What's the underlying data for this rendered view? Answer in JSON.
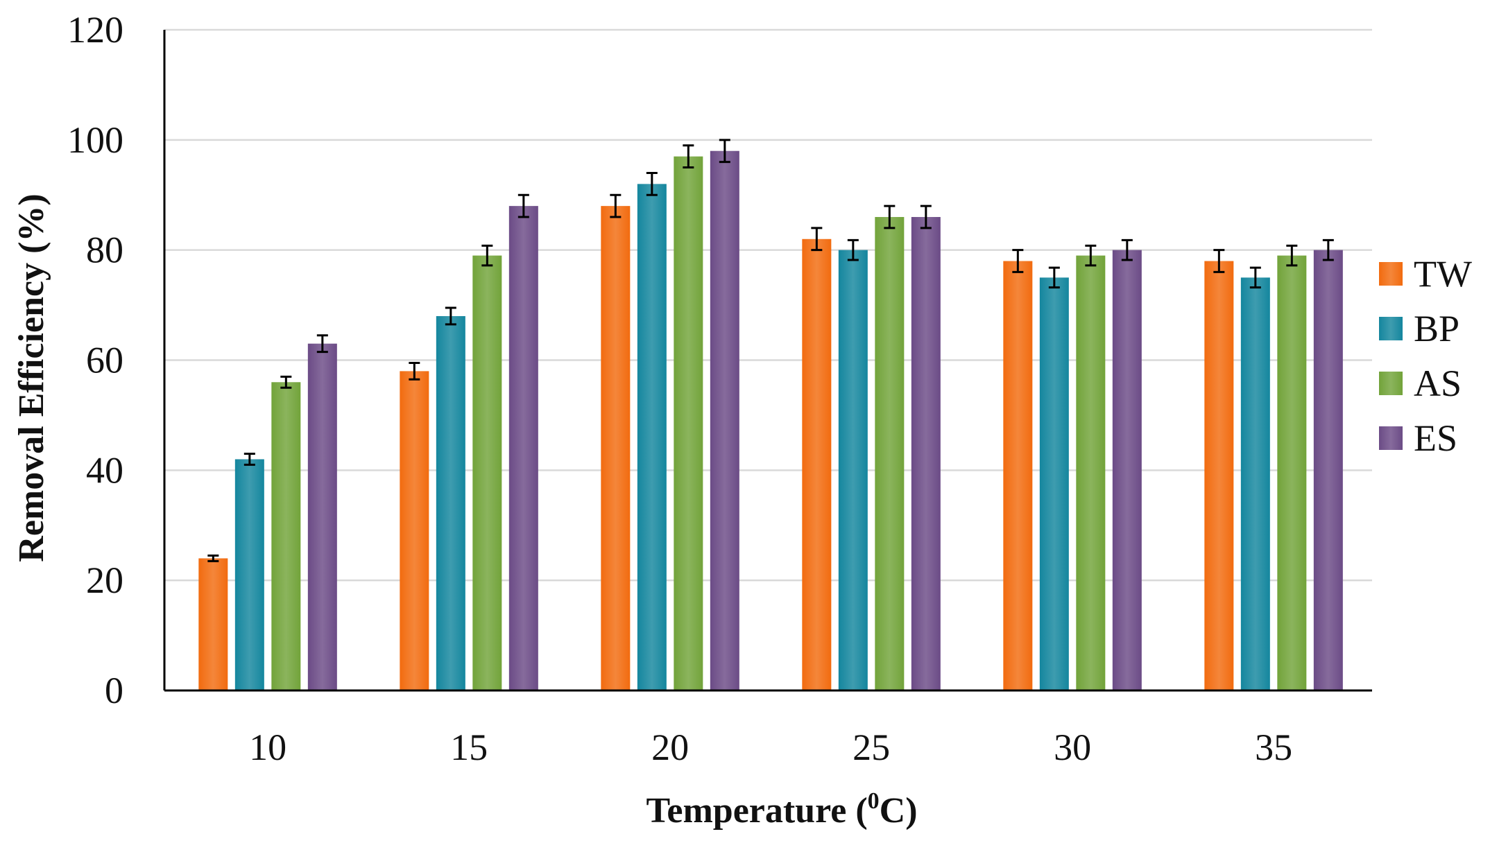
{
  "chart_data": {
    "type": "bar",
    "title": "",
    "xlabel": "Temperature (",
    "xlabel_sup": "0",
    "xlabel_tail": "C)",
    "ylabel": "Removal Efficiency (%)",
    "ylim": [
      0,
      120
    ],
    "yticks": [
      0,
      20,
      40,
      60,
      80,
      100,
      120
    ],
    "categories": [
      "10",
      "15",
      "20",
      "25",
      "30",
      "35"
    ],
    "grid": "horizontal",
    "legend_position": "right",
    "error_bars": true,
    "series": [
      {
        "name": "TW",
        "color": "#f26b0f",
        "values": [
          24,
          58,
          88,
          82,
          78,
          78
        ],
        "errors": [
          0.5,
          1.5,
          2,
          2,
          2,
          2
        ]
      },
      {
        "name": "BP",
        "color": "#14869e",
        "values": [
          42,
          68,
          92,
          80,
          75,
          75
        ],
        "errors": [
          1,
          1.5,
          2,
          1.8,
          1.8,
          1.8
        ]
      },
      {
        "name": "AS",
        "color": "#72a33a",
        "values": [
          56,
          79,
          97,
          86,
          79,
          79
        ],
        "errors": [
          1,
          1.8,
          2,
          2,
          1.8,
          1.8
        ]
      },
      {
        "name": "ES",
        "color": "#6b4b86",
        "values": [
          63,
          88,
          98,
          86,
          80,
          80
        ],
        "errors": [
          1.5,
          2,
          2,
          2,
          1.8,
          1.8
        ]
      }
    ]
  }
}
